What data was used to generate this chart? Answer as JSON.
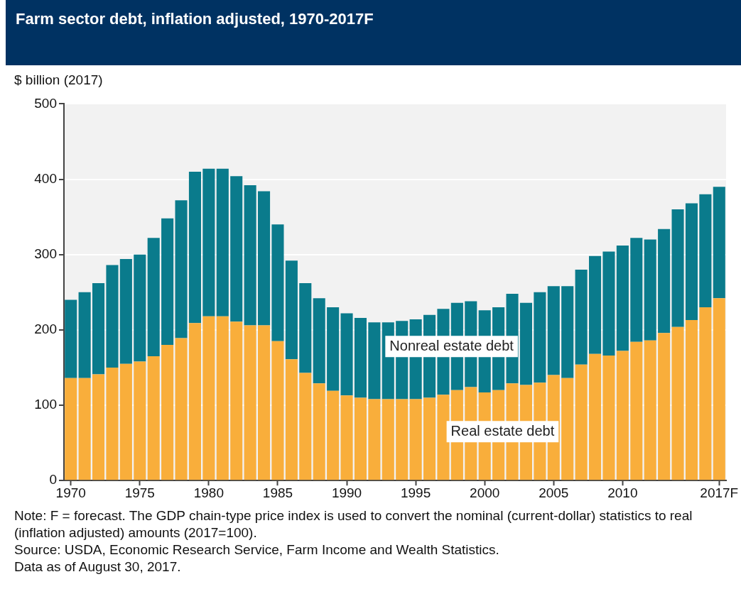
{
  "chart_data": {
    "type": "bar",
    "stacked": true,
    "title": "Farm sector debt, inflation adjusted, 1970-2017F",
    "ylabel": "$ billion (2017)",
    "categories": [
      "1970",
      null,
      null,
      null,
      null,
      "1975",
      null,
      null,
      null,
      null,
      "1980",
      null,
      null,
      null,
      null,
      "1985",
      null,
      null,
      null,
      null,
      "1990",
      null,
      null,
      null,
      null,
      "1995",
      null,
      null,
      null,
      null,
      "2000",
      null,
      null,
      null,
      null,
      "2005",
      null,
      null,
      null,
      null,
      "2010",
      null,
      null,
      null,
      null,
      null,
      null,
      "2017F"
    ],
    "series": [
      {
        "name": "Real estate debt",
        "color": "#f9ae3b",
        "values": [
          136,
          136,
          141,
          150,
          155,
          158,
          165,
          180,
          189,
          209,
          218,
          218,
          211,
          206,
          206,
          185,
          161,
          143,
          129,
          119,
          113,
          110,
          108,
          108,
          108,
          108,
          110,
          114,
          120,
          124,
          117,
          120,
          129,
          127,
          130,
          140,
          136,
          154,
          168,
          166,
          172,
          184,
          186,
          196,
          204,
          213,
          230,
          242
        ]
      },
      {
        "name": "Nonreal estate debt",
        "color": "#0a7b8c",
        "values": [
          104,
          114,
          121,
          136,
          139,
          142,
          157,
          168,
          183,
          201,
          196,
          196,
          193,
          186,
          178,
          155,
          131,
          119,
          113,
          111,
          109,
          106,
          102,
          102,
          104,
          106,
          110,
          114,
          116,
          114,
          109,
          110,
          119,
          109,
          120,
          118,
          122,
          126,
          130,
          138,
          140,
          138,
          134,
          138,
          156,
          155,
          150,
          148
        ]
      }
    ],
    "ylim": [
      0,
      500
    ],
    "yticks": [
      0,
      100,
      200,
      300,
      400,
      500
    ],
    "grid": "y",
    "legend": false,
    "annotations": [
      "Note: F = forecast. The GDP chain-type price index is used to convert the nominal (current-dollar) statistics to real (inflation adjusted) amounts (2017=100).",
      "Source: USDA, Economic Research Service, Farm Income and Wealth Statistics.",
      "Data as of August 30, 2017."
    ]
  }
}
